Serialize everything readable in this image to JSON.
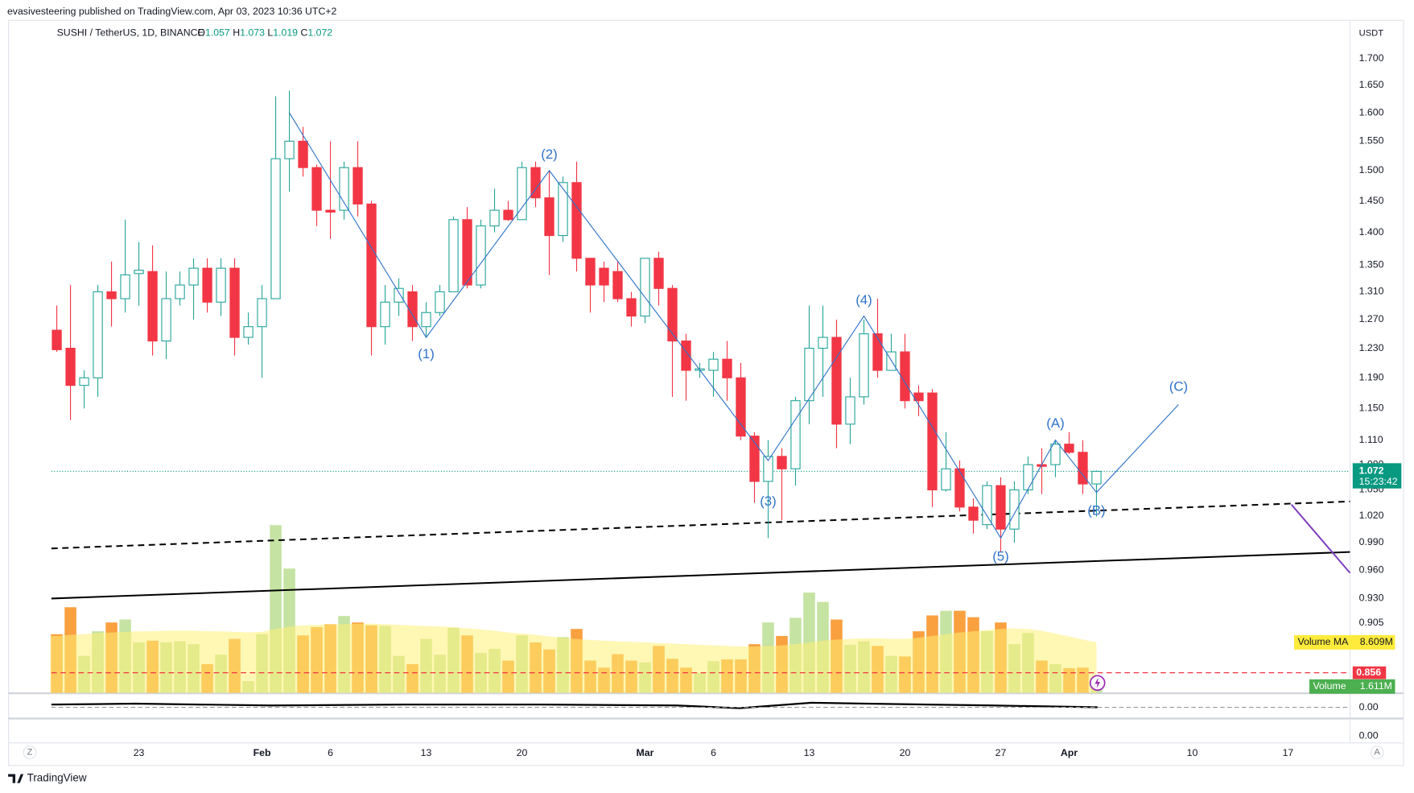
{
  "header": {
    "publisher": "evasivesteering published on TradingView.com, Apr 03, 2023 10:36 UTC+2"
  },
  "chart_data": {
    "type": "candlestick",
    "title": "SUSHI / TetherUS, 1D, BINANCE",
    "ohlc_letters": [
      "O",
      "H",
      "L",
      "C"
    ],
    "currency": "USDT",
    "categories": [
      null,
      null,
      null,
      null,
      null,
      null,
      "23",
      null,
      null,
      null,
      null,
      null,
      null,
      null,
      null,
      "Feb",
      null,
      null,
      null,
      null,
      "6",
      null,
      null,
      null,
      null,
      null,
      null,
      "13",
      null,
      null,
      null,
      null,
      null,
      null,
      "20",
      null,
      null,
      null,
      null,
      null,
      null,
      null,
      null,
      "Mar",
      null,
      null,
      null,
      null,
      "6",
      null,
      null,
      null,
      null,
      null,
      null,
      "13",
      null,
      null,
      null,
      null,
      null,
      null,
      "20",
      null,
      null,
      null,
      null,
      null,
      null,
      "27",
      null,
      null,
      null,
      null,
      "Apr",
      null,
      null,
      null,
      null,
      null,
      null,
      null,
      null,
      "10",
      null,
      null,
      null,
      null,
      null,
      null,
      "17",
      null,
      null,
      null,
      null
    ],
    "open": [
      1.255,
      1.23,
      1.18,
      1.19,
      1.31,
      1.3,
      1.337,
      1.34,
      1.24,
      1.3,
      1.32,
      1.345,
      1.295,
      1.345,
      1.245,
      1.26,
      1.3,
      1.52,
      1.55,
      1.505,
      1.435,
      1.435,
      1.505,
      1.445,
      1.26,
      1.295,
      1.31,
      1.26,
      1.28,
      1.31,
      1.42,
      1.32,
      1.41,
      1.435,
      1.42,
      1.505,
      1.455,
      1.395,
      1.48,
      1.36,
      1.345,
      1.34,
      1.3,
      1.275,
      1.36,
      1.315,
      1.24,
      1.2,
      1.2,
      1.215,
      1.19,
      1.115,
      1.06,
      1.09,
      1.075,
      1.16,
      1.23,
      1.245,
      1.13,
      1.165,
      1.25,
      1.2,
      1.225,
      1.17,
      1.17,
      1.05,
      1.075,
      1.03,
      1.01,
      1.055,
      1.005,
      1.05,
      1.08,
      1.08,
      1.105,
      1.095,
      1.057,
      null,
      null,
      null,
      null,
      null,
      null,
      null,
      null,
      null,
      null,
      null,
      null,
      null,
      null,
      null,
      null,
      null,
      null
    ],
    "high": [
      1.29,
      1.32,
      1.2,
      1.32,
      1.355,
      1.42,
      1.385,
      1.38,
      1.34,
      1.34,
      1.36,
      1.36,
      1.36,
      1.36,
      1.28,
      1.32,
      1.63,
      1.64,
      1.575,
      1.51,
      1.55,
      1.515,
      1.55,
      1.45,
      1.32,
      1.33,
      1.32,
      1.295,
      1.32,
      1.425,
      1.44,
      1.42,
      1.47,
      1.45,
      1.515,
      1.515,
      1.5,
      1.49,
      1.515,
      1.36,
      1.355,
      1.355,
      1.31,
      1.36,
      1.37,
      1.32,
      1.25,
      1.21,
      1.225,
      1.24,
      1.21,
      1.12,
      1.11,
      1.1,
      1.165,
      1.29,
      1.29,
      1.27,
      1.19,
      1.27,
      1.3,
      1.25,
      1.25,
      1.18,
      1.175,
      1.12,
      1.085,
      1.04,
      1.06,
      1.065,
      1.06,
      1.09,
      1.1,
      1.11,
      1.12,
      1.11,
      1.073,
      null,
      null,
      null,
      null,
      null,
      null,
      null,
      null,
      null,
      null,
      null,
      null,
      null,
      null,
      null,
      null,
      null,
      null
    ],
    "low": [
      1.225,
      1.135,
      1.15,
      1.165,
      1.26,
      1.28,
      1.29,
      1.22,
      1.215,
      1.29,
      1.27,
      1.28,
      1.275,
      1.22,
      1.235,
      1.19,
      1.3,
      1.465,
      1.49,
      1.41,
      1.39,
      1.42,
      1.425,
      1.22,
      1.235,
      1.275,
      1.24,
      1.245,
      1.275,
      1.31,
      1.315,
      1.315,
      1.4,
      1.418,
      1.42,
      1.44,
      1.335,
      1.385,
      1.34,
      1.28,
      1.295,
      1.295,
      1.26,
      1.265,
      1.29,
      1.165,
      1.16,
      1.19,
      1.165,
      1.16,
      1.11,
      1.035,
      0.995,
      1.015,
      1.055,
      1.13,
      1.165,
      1.1,
      1.105,
      1.155,
      1.19,
      1.2,
      1.15,
      1.14,
      1.03,
      1.048,
      1.025,
      1.0,
      1.005,
      0.98,
      0.99,
      1.045,
      1.045,
      1.065,
      1.093,
      1.045,
      1.019,
      null,
      null,
      null,
      null,
      null,
      null,
      null,
      null,
      null,
      null,
      null,
      null,
      null,
      null,
      null,
      null,
      null,
      null
    ],
    "close": [
      1.228,
      1.18,
      1.19,
      1.31,
      1.3,
      1.335,
      1.342,
      1.24,
      1.3,
      1.32,
      1.345,
      1.295,
      1.345,
      1.245,
      1.26,
      1.3,
      1.52,
      1.55,
      1.505,
      1.435,
      1.432,
      1.505,
      1.445,
      1.26,
      1.295,
      1.315,
      1.26,
      1.28,
      1.31,
      1.42,
      1.32,
      1.41,
      1.435,
      1.42,
      1.505,
      1.455,
      1.395,
      1.48,
      1.36,
      1.32,
      1.32,
      1.3,
      1.275,
      1.36,
      1.315,
      1.24,
      1.2,
      1.202,
      1.215,
      1.19,
      1.115,
      1.06,
      1.09,
      1.075,
      1.16,
      1.23,
      1.245,
      1.13,
      1.165,
      1.25,
      1.2,
      1.225,
      1.16,
      1.16,
      1.05,
      1.075,
      1.03,
      1.015,
      1.055,
      1.005,
      1.05,
      1.08,
      1.078,
      1.105,
      1.095,
      1.057,
      1.072,
      null,
      null,
      null,
      null,
      null,
      null,
      null,
      null,
      null,
      null,
      null,
      null,
      null,
      null,
      null,
      null,
      null,
      null
    ],
    "up_color": "#26a69a",
    "down_color": "#f23645",
    "log_scale": true,
    "grid": false,
    "ylim": [
      0.837,
      1.775
    ],
    "yticks": [
      {
        "value": 1.7,
        "label": "1.700"
      },
      {
        "value": 1.65,
        "label": "1.650"
      },
      {
        "value": 1.6,
        "label": "1.600"
      },
      {
        "value": 1.55,
        "label": "1.550"
      },
      {
        "value": 1.5,
        "label": "1.500"
      },
      {
        "value": 1.45,
        "label": "1.450"
      },
      {
        "value": 1.4,
        "label": "1.400"
      },
      {
        "value": 1.35,
        "label": "1.350"
      },
      {
        "value": 1.31,
        "label": "1.310"
      },
      {
        "value": 1.27,
        "label": "1.270"
      },
      {
        "value": 1.23,
        "label": "1.230"
      },
      {
        "value": 1.19,
        "label": "1.190"
      },
      {
        "value": 1.15,
        "label": "1.150"
      },
      {
        "value": 1.11,
        "label": "1.110"
      },
      {
        "value": 1.08,
        "label": "1.080"
      },
      {
        "value": 1.05,
        "label": "1.050"
      },
      {
        "value": 1.02,
        "label": "1.020"
      },
      {
        "value": 0.99,
        "label": "0.990"
      },
      {
        "value": 0.96,
        "label": "0.960"
      },
      {
        "value": 0.93,
        "label": "0.930"
      },
      0.905
    ],
    "countdown": "15:23:42",
    "current_color": "#089981",
    "price_lines": [
      {
        "value": 0.856,
        "color": "#f23645"
      }
    ],
    "volume": {
      "name": "Volume",
      "up_color": "#c5e3a2",
      "down_color": "#f9a03f",
      "label_color": "#4caf50",
      "lim": [
        0,
        60000000
      ],
      "values": [
        10000000,
        14600000,
        6300000,
        10500000,
        12000000,
        12500000,
        8600000,
        8900000,
        8600000,
        8800000,
        8300000,
        4900000,
        6500000,
        9200000,
        2000000,
        10000000,
        28600000,
        21200000,
        9800000,
        11200000,
        11700000,
        13100000,
        12000000,
        11500000,
        11400000,
        6300000,
        4900000,
        9200000,
        6500000,
        11100000,
        9800000,
        6800000,
        7500000,
        5500000,
        9800000,
        8600000,
        7400000,
        9500000,
        10900000,
        5500000,
        4300000,
        6600000,
        5500000,
        5200000,
        8000000,
        5800000,
        4300000,
        3400000,
        5400000,
        5700000,
        5700000,
        8300000,
        12000000,
        9700000,
        12800000,
        17100000,
        15500000,
        12500000,
        8200000,
        8800000,
        8000000,
        6300000,
        6200000,
        10500000,
        13200000,
        14000000,
        14000000,
        12900000,
        10500000,
        12000000,
        8300000,
        10200000,
        5500000,
        4900000,
        4200000,
        4300000,
        1611000,
        null,
        null,
        null,
        null,
        null,
        null,
        null,
        null,
        null,
        null,
        null,
        null,
        null,
        null,
        null,
        null,
        null,
        null
      ],
      "value_labels": [
        null,
        null,
        null,
        null,
        null,
        null,
        null,
        null,
        null,
        null,
        null,
        null,
        null,
        null,
        null,
        null,
        null,
        null,
        null,
        null,
        null,
        null,
        null,
        null,
        null,
        null,
        null,
        null,
        null,
        null,
        null,
        null,
        null,
        null,
        null,
        null,
        null,
        null,
        null,
        null,
        null,
        null,
        null,
        null,
        null,
        null,
        null,
        null,
        null,
        null,
        null,
        null,
        null,
        null,
        null,
        null,
        null,
        null,
        null,
        null,
        null,
        null,
        null,
        null,
        null,
        null,
        null,
        null,
        null,
        null,
        null,
        null,
        null,
        null,
        null,
        null,
        "1.611M",
        null,
        null,
        null,
        null,
        null,
        null,
        null,
        null,
        null,
        null,
        null,
        null,
        null,
        null,
        null,
        null,
        null,
        null
      ]
    },
    "volume_ma": {
      "name": "Volume MA",
      "color": "#fff176",
      "label_color": "#ffeb3b",
      "values": [
        9700000,
        9900000,
        10000000,
        10200000,
        10300000,
        10400000,
        10500000,
        10500000,
        10600000,
        10600000,
        10600000,
        10500000,
        10500000,
        10400000,
        10300000,
        10400000,
        10900000,
        11300000,
        11500000,
        11600000,
        11700000,
        11700000,
        11800000,
        11800000,
        11700000,
        11600000,
        11500000,
        11400000,
        11300000,
        11200000,
        11000000,
        10800000,
        10600000,
        10300000,
        10100000,
        9900000,
        9600000,
        9400000,
        9200000,
        9000000,
        8900000,
        8800000,
        8700000,
        8600000,
        8500000,
        8400000,
        8300000,
        8200000,
        8100000,
        8000000,
        7900000,
        7900000,
        8000000,
        8100000,
        8300000,
        8600000,
        8900000,
        9100000,
        9200000,
        9300000,
        9300000,
        9200000,
        9200000,
        9400000,
        9700000,
        10000000,
        10300000,
        10500000,
        10700000,
        10900000,
        11000000,
        10900000,
        10600000,
        10100000,
        9600000,
        9100000,
        8609000,
        null,
        null,
        null,
        null,
        null,
        null,
        null,
        null,
        null,
        null,
        null,
        null,
        null,
        null,
        null,
        null,
        null,
        null
      ],
      "value_labels": [
        null,
        null,
        null,
        null,
        null,
        null,
        null,
        null,
        null,
        null,
        null,
        null,
        null,
        null,
        null,
        null,
        null,
        null,
        null,
        null,
        null,
        null,
        null,
        null,
        null,
        null,
        null,
        null,
        null,
        null,
        null,
        null,
        null,
        null,
        null,
        null,
        null,
        null,
        null,
        null,
        null,
        null,
        null,
        null,
        null,
        null,
        null,
        null,
        null,
        null,
        null,
        null,
        null,
        null,
        null,
        null,
        null,
        null,
        null,
        null,
        null,
        null,
        null,
        null,
        null,
        null,
        null,
        null,
        null,
        null,
        null,
        null,
        null,
        null,
        null,
        null,
        "8.609M",
        null,
        null,
        null,
        null,
        null,
        null,
        null,
        null,
        null,
        null,
        null,
        null,
        null,
        null,
        null,
        null,
        null,
        null
      ]
    },
    "waves": {
      "color": "#2f73c9",
      "points": [
        {
          "price": 1.6
        },
        {
          "label": "(1)",
          "price": 1.245
        },
        {
          "label": "(2)",
          "price": 1.5
        },
        {
          "label": "(3)",
          "price": 1.085
        },
        {
          "label": "(4)",
          "price": 1.275
        },
        {
          "label": "(5)",
          "price": 0.995
        },
        {
          "label": "(A)",
          "price": 1.11
        },
        {
          "label": "(B)",
          "price": 1.047
        },
        {
          "label": "(C)",
          "price": 1.155
        }
      ]
    },
    "trendlines": [
      {
        "color": "#000000",
        "dash": true,
        "from": 0.9835,
        "to": 1.0365
      },
      {
        "color": "#000000",
        "dash": false,
        "from": 0.93,
        "to": 0.9796
      },
      {
        "color": "#7e3fbf",
        "dash": false,
        "from": 1.033,
        "to": 0.957
      }
    ],
    "indicator_labels": [
      "0.00",
      "0.00"
    ]
  },
  "footer": {
    "scale_left": "Z",
    "scale_right": "A",
    "brand": "TradingView"
  }
}
